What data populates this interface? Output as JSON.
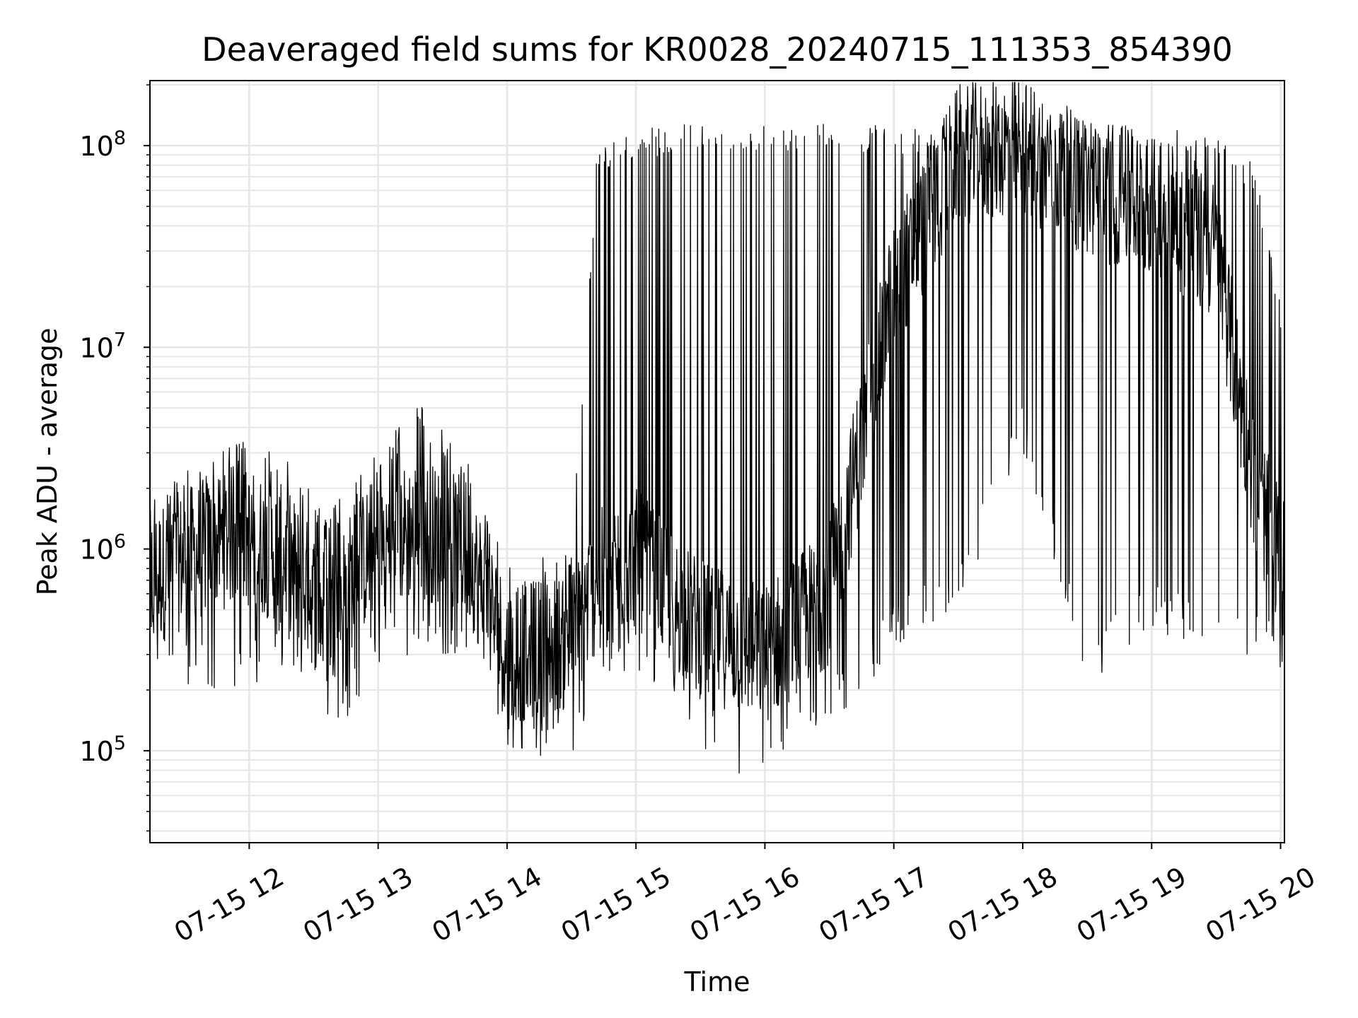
{
  "chart_data": {
    "type": "line",
    "title": "Deaveraged field sums for KR0028_20240715_111353_854390",
    "xlabel": "Time",
    "ylabel": "Peak ADU - average",
    "x_scale": "time",
    "y_scale": "log",
    "x_range_hours": [
      11.23,
      20.03
    ],
    "ylim": [
      35000,
      210000000
    ],
    "x_ticks": [
      {
        "hour": 12,
        "label": "07-15 12"
      },
      {
        "hour": 13,
        "label": "07-15 13"
      },
      {
        "hour": 14,
        "label": "07-15 14"
      },
      {
        "hour": 15,
        "label": "07-15 15"
      },
      {
        "hour": 16,
        "label": "07-15 16"
      },
      {
        "hour": 17,
        "label": "07-15 17"
      },
      {
        "hour": 18,
        "label": "07-15 18"
      },
      {
        "hour": 19,
        "label": "07-15 19"
      },
      {
        "hour": 20,
        "label": "07-15 20"
      }
    ],
    "y_ticks": [
      {
        "value": 100000,
        "base": "10",
        "exp": "5"
      },
      {
        "value": 1000000,
        "base": "10",
        "exp": "6"
      },
      {
        "value": 10000000,
        "base": "10",
        "exp": "7"
      },
      {
        "value": 100000000,
        "base": "10",
        "exp": "8"
      }
    ],
    "grid": true,
    "minor_grid": true,
    "line_color": "#000000",
    "grid_color": "#e6e6e6",
    "series_profile": [
      {
        "hour": 11.23,
        "baseline": 700000,
        "upper": 2000000,
        "lower": 250000
      },
      {
        "hour": 11.5,
        "baseline": 900000,
        "upper": 2500000,
        "lower": 200000
      },
      {
        "hour": 11.9,
        "baseline": 1200000,
        "upper": 3500000,
        "lower": 200000
      },
      {
        "hour": 12.3,
        "baseline": 900000,
        "upper": 3000000,
        "lower": 250000
      },
      {
        "hour": 12.6,
        "baseline": 450000,
        "upper": 1500000,
        "lower": 100000
      },
      {
        "hour": 12.9,
        "baseline": 900000,
        "upper": 2500000,
        "lower": 200000
      },
      {
        "hour": 13.3,
        "baseline": 1300000,
        "upper": 5500000,
        "lower": 300000
      },
      {
        "hour": 13.7,
        "baseline": 1000000,
        "upper": 2800000,
        "lower": 300000
      },
      {
        "hour": 14.0,
        "baseline": 300000,
        "upper": 800000,
        "lower": 100000
      },
      {
        "hour": 14.5,
        "baseline": 350000,
        "upper": 1000000,
        "lower": 80000
      },
      {
        "hour": 14.7,
        "baseline": 700000,
        "upper": 100000000,
        "lower": 200000
      },
      {
        "hour": 15.0,
        "baseline": 900000,
        "upper": 120000000,
        "lower": 250000
      },
      {
        "hour": 15.5,
        "baseline": 400000,
        "upper": 130000000,
        "lower": 100000
      },
      {
        "hour": 16.0,
        "baseline": 300000,
        "upper": 130000000,
        "lower": 60000
      },
      {
        "hour": 16.5,
        "baseline": 600000,
        "upper": 130000000,
        "lower": 120000
      },
      {
        "hour": 17.0,
        "baseline": 20000000,
        "upper": 125000000,
        "lower": 300000
      },
      {
        "hour": 17.5,
        "baseline": 90000000,
        "upper": 128000000,
        "lower": 500000
      },
      {
        "hour": 18.0,
        "baseline": 100000000,
        "upper": 135000000,
        "lower": 3000000
      },
      {
        "hour": 18.5,
        "baseline": 60000000,
        "upper": 140000000,
        "lower": 200000
      },
      {
        "hour": 19.0,
        "baseline": 50000000,
        "upper": 125000000,
        "lower": 400000
      },
      {
        "hour": 19.5,
        "baseline": 30000000,
        "upper": 110000000,
        "lower": 300000
      },
      {
        "hour": 19.8,
        "baseline": 2000000,
        "upper": 80000000,
        "lower": 300000
      },
      {
        "hour": 20.03,
        "baseline": 800000,
        "upper": 14000000,
        "lower": 200000
      }
    ]
  }
}
